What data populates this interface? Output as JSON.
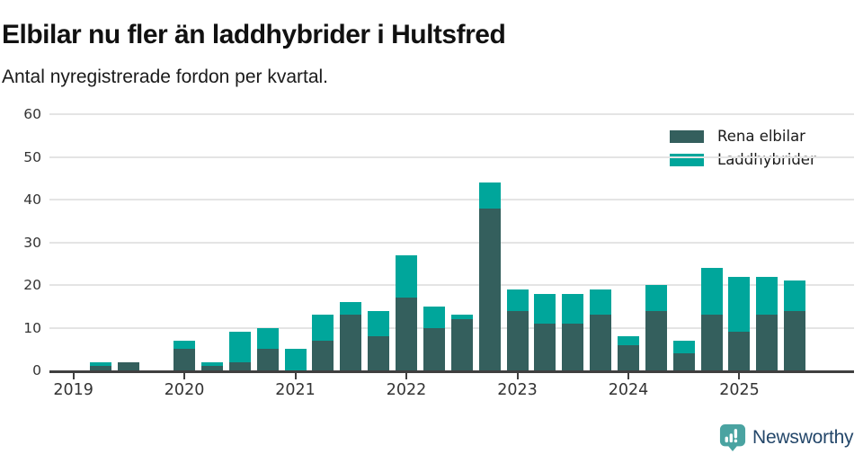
{
  "chart_data": {
    "type": "bar",
    "stacked": true,
    "title": "Elbilar nu fler än laddhybrider i Hultsfred",
    "subtitle": "Antal nyregistrerade fordon per kvartal.",
    "categories": [
      "2019 Q1",
      "2019 Q2",
      "2019 Q3",
      "2019 Q4",
      "2020 Q1",
      "2020 Q2",
      "2020 Q3",
      "2020 Q4",
      "2021 Q1",
      "2021 Q2",
      "2021 Q3",
      "2021 Q4",
      "2022 Q1",
      "2022 Q2",
      "2022 Q3",
      "2022 Q4",
      "2023 Q1",
      "2023 Q2",
      "2023 Q3",
      "2023 Q4",
      "2024 Q1",
      "2024 Q2",
      "2024 Q3",
      "2024 Q4",
      "2025 Q1",
      "2025 Q2",
      "2025 Q3"
    ],
    "series": [
      {
        "name": "Rena elbilar",
        "color": "#345f5d",
        "values": [
          0,
          1,
          2,
          0,
          5,
          1,
          2,
          5,
          0,
          7,
          13,
          8,
          17,
          10,
          12,
          38,
          14,
          11,
          11,
          13,
          6,
          14,
          4,
          13,
          9,
          13,
          14
        ]
      },
      {
        "name": "Laddhybrider",
        "color": "#00a69b",
        "values": [
          0,
          1,
          0,
          0,
          2,
          1,
          7,
          5,
          5,
          6,
          3,
          6,
          10,
          5,
          1,
          6,
          5,
          7,
          7,
          6,
          2,
          6,
          3,
          11,
          13,
          9,
          7
        ]
      }
    ],
    "x_tick_labels": [
      "2019",
      "2020",
      "2021",
      "2022",
      "2023",
      "2024",
      "2025"
    ],
    "y_ticks": [
      0,
      10,
      20,
      30,
      40,
      50,
      60
    ],
    "ylim": [
      0,
      60
    ],
    "grid": "horizontal",
    "legend_position": "top-right"
  },
  "colors": {
    "gridline": "#e4e4e4",
    "axis": "#3f3f3f",
    "tick_text": "#333333",
    "logo_teal": "#4aa3a1",
    "logo_text": "#24476a"
  },
  "footer": {
    "brand": "Newsworthy"
  }
}
